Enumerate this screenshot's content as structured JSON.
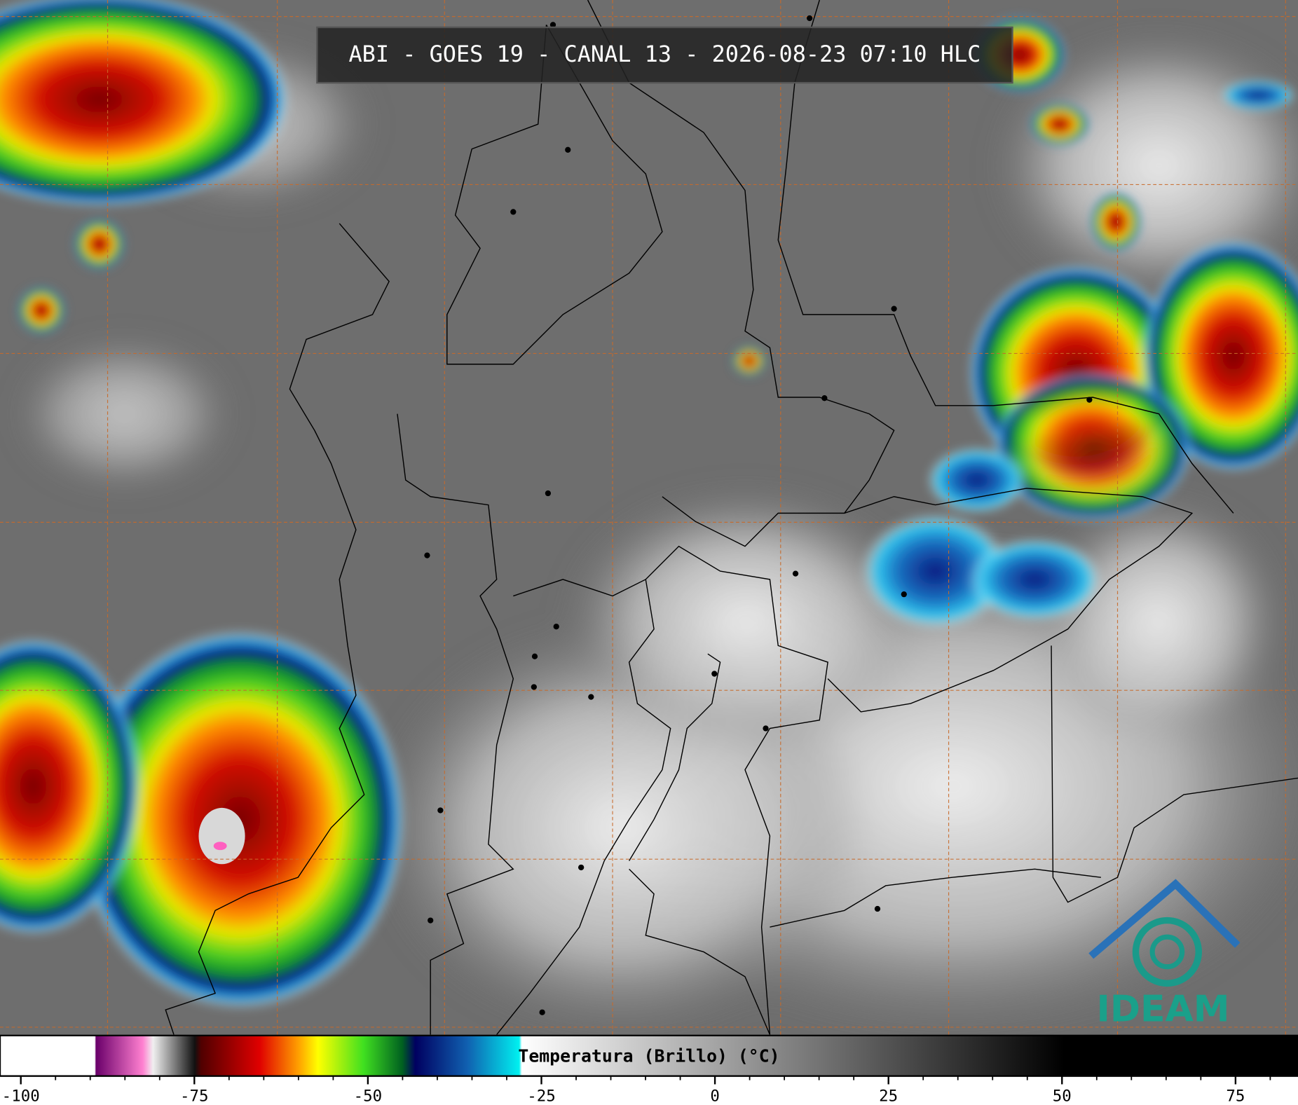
{
  "header": {
    "title": "ABI - GOES 19 - CANAL 13 - 2026-08-23 07:10 HLC"
  },
  "colorbar": {
    "label": "Temperatura (Brillo) (°C)",
    "range": [
      -103,
      84
    ],
    "ticks": [
      -100,
      -75,
      -50,
      -25,
      0,
      25,
      50,
      75
    ]
  },
  "logo": {
    "text": "IDEAM"
  }
}
